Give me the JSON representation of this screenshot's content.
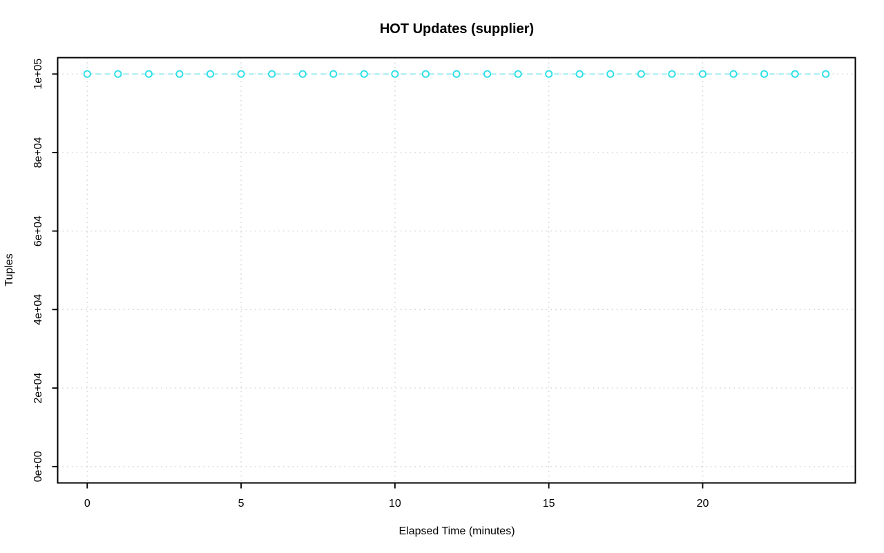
{
  "chart_data": {
    "type": "line",
    "title": "HOT Updates (supplier)",
    "xlabel": "Elapsed Time (minutes)",
    "ylabel": "Tuples",
    "x": [
      0,
      1,
      2,
      3,
      4,
      5,
      6,
      7,
      8,
      9,
      10,
      11,
      12,
      13,
      14,
      15,
      16,
      17,
      18,
      19,
      20,
      21,
      22,
      23,
      24
    ],
    "y": [
      100000,
      100000,
      100000,
      100000,
      100000,
      100000,
      100000,
      100000,
      100000,
      100000,
      100000,
      100000,
      100000,
      100000,
      100000,
      100000,
      100000,
      100000,
      100000,
      100000,
      100000,
      100000,
      100000,
      100000,
      100000
    ],
    "series_name": "HOT Updates",
    "marker": "open-circle",
    "line_style": "dashed",
    "grid": true,
    "legend": "none",
    "xlim": [
      -0.96,
      24.96
    ],
    "ylim": [
      -4170,
      104170
    ],
    "xticks": {
      "values": [
        0,
        5,
        10,
        15,
        20
      ],
      "labels": [
        "0",
        "5",
        "10",
        "15",
        "20"
      ]
    },
    "yticks": {
      "values": [
        0,
        20000,
        40000,
        60000,
        80000,
        100000
      ],
      "labels": [
        "0e+00",
        "2e+04",
        "4e+04",
        "6e+04",
        "8e+04",
        "1e+05"
      ]
    },
    "colors": {
      "series_marker": "#2bdfe8",
      "series_line": "#8deaf0",
      "grid": "#d3d3d3",
      "axis": "#000000",
      "background": "#ffffff",
      "text": "#000000"
    }
  }
}
